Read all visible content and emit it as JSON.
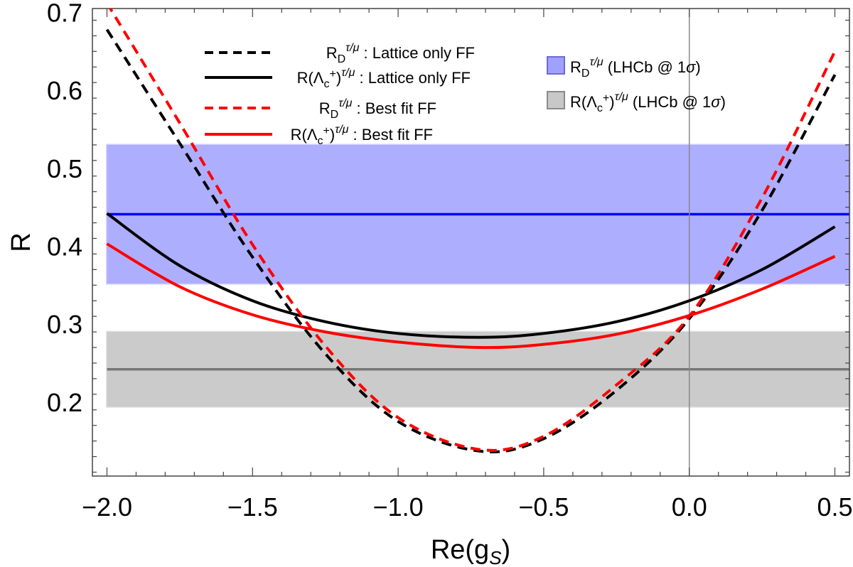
{
  "chart_data": {
    "type": "line",
    "xlabel": "Re(g",
    "xlabel_sub": "S",
    "xlabel_close": ")",
    "ylabel": "R",
    "xlim": [
      -2.05,
      0.55
    ],
    "ylim": [
      0.105,
      0.705
    ],
    "x_ticks": [
      -2.0,
      -1.5,
      -1.0,
      -0.5,
      0.0,
      0.5
    ],
    "x_tick_labels": [
      "−2.0",
      "−1.5",
      "−1.0",
      "−0.5",
      "0.0",
      "0.5"
    ],
    "y_ticks": [
      0.2,
      0.3,
      0.4,
      0.5,
      0.6,
      0.7
    ],
    "y_tick_labels": [
      "0.2",
      "0.3",
      "0.4",
      "0.5",
      "0.6",
      "0.7"
    ],
    "grid": false,
    "vertical_reference_x": 0.0,
    "bands": [
      {
        "name": "R_D^{τ/μ} (LHCb @ 1σ)",
        "central": 0.441,
        "low": 0.352,
        "high": 0.53,
        "color": "#aaaaff",
        "line_color": "#0000ff"
      },
      {
        "name": "R(Λ_c^+)^{τ/μ} (LHCb @ 1σ)",
        "central": 0.242,
        "low": 0.194,
        "high": 0.29,
        "color": "#c8c8c8",
        "line_color": "#777777"
      }
    ],
    "series": [
      {
        "name": "R_D^{τ/μ} : Lattice only FF",
        "style": "dashed",
        "color": "#000000",
        "x": [
          -2.0,
          -1.75,
          -1.5,
          -1.25,
          -1.0,
          -0.72,
          -0.5,
          -0.25,
          0.0,
          0.25,
          0.5
        ],
        "y": [
          0.678,
          0.532,
          0.386,
          0.262,
          0.175,
          0.137,
          0.153,
          0.215,
          0.307,
          0.446,
          0.62
        ]
      },
      {
        "name": "R(Λ_c^+)^{τ/μ} : Lattice only FF",
        "style": "solid",
        "color": "#000000",
        "x": [
          -2.0,
          -1.75,
          -1.5,
          -1.25,
          -1.0,
          -0.72,
          -0.5,
          -0.25,
          0.0,
          0.25,
          0.5
        ],
        "y": [
          0.442,
          0.375,
          0.33,
          0.303,
          0.288,
          0.283,
          0.288,
          0.303,
          0.33,
          0.37,
          0.425
        ]
      },
      {
        "name": "R_D^{τ/μ} : Best fit FF",
        "style": "dashed",
        "color": "#ff0000",
        "x": [
          -2.0,
          -1.75,
          -1.5,
          -1.25,
          -1.0,
          -0.72,
          -0.5,
          -0.25,
          0.0,
          0.25,
          0.5
        ],
        "y": [
          0.712,
          0.558,
          0.402,
          0.272,
          0.18,
          0.139,
          0.156,
          0.222,
          0.31,
          0.462,
          0.65
        ]
      },
      {
        "name": "R(Λ_c^+)^{τ/μ} : Best fit FF",
        "style": "solid",
        "color": "#ff0000",
        "x": [
          -2.0,
          -1.75,
          -1.5,
          -1.25,
          -1.0,
          -0.72,
          -0.5,
          -0.25,
          0.0,
          0.25,
          0.5
        ],
        "y": [
          0.403,
          0.348,
          0.312,
          0.29,
          0.277,
          0.27,
          0.274,
          0.287,
          0.311,
          0.345,
          0.387
        ]
      }
    ],
    "legend": {
      "left": [
        {
          "base": "R",
          "sub": "D",
          "sup": "τ/μ",
          "tail": " : Lattice only FF",
          "style": "dashed",
          "color": "#000000"
        },
        {
          "base": "R(Λ",
          "sub": "c",
          "subsup": "+",
          "close": ")",
          "sup": "τ/μ",
          "tail": " : Lattice only FF",
          "style": "solid",
          "color": "#000000"
        },
        {
          "base": "R",
          "sub": "D",
          "sup": "τ/μ",
          "tail": " : Best fit FF",
          "style": "dashed",
          "color": "#ff0000"
        },
        {
          "base": "R(Λ",
          "sub": "c",
          "subsup": "+",
          "close": ")",
          "sup": "τ/μ",
          "tail": " : Best fit FF",
          "style": "solid",
          "color": "#ff0000"
        }
      ],
      "right": [
        {
          "base": "R",
          "sub": "D",
          "sup": "τ/μ",
          "tail": " (LHCb @ 1",
          "sigma": "σ",
          "end": ")",
          "color": "#a0a0ff",
          "border": "#6b6bd8"
        },
        {
          "base": "R(Λ",
          "sub": "c",
          "subsup": "+",
          "close": ")",
          "sup": "τ/μ",
          "tail": " (LHCb @ 1",
          "sigma": "σ",
          "end": ")",
          "color": "#c8c8c8",
          "border": "#8a8a8a"
        }
      ]
    }
  }
}
